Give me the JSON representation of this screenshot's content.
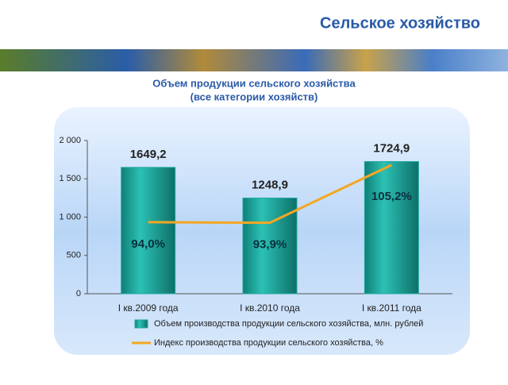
{
  "header": {
    "title": "Сельское хозяйство"
  },
  "chart_data": {
    "type": "bar",
    "title": "Объем продукции сельского хозяйства",
    "subtitle": "(все категории хозяйств)",
    "categories": [
      "I кв.2009 года",
      "I кв.2010 года",
      "I кв.2011 года"
    ],
    "series": [
      {
        "name": "Объем производства продукции сельского хозяйства, млн. рублей",
        "type": "bar",
        "color": "#1fa89e",
        "values": [
          1649.2,
          1248.9,
          1724.9
        ],
        "value_labels": [
          "1649,2",
          "1248,9",
          "1724,9"
        ]
      },
      {
        "name": "Индекс производства продукции сельского хозяйства, %",
        "type": "line",
        "axis": "y2",
        "color": "#f5a623",
        "values": [
          94.0,
          93.9,
          105.2
        ],
        "value_labels": [
          "94,0%",
          "93,9%",
          "105,2%"
        ]
      }
    ],
    "ylim": [
      0,
      2000
    ],
    "yticks": [
      0,
      500,
      {
        "value": 1000,
        "label": "1 000"
      },
      {
        "value": 1500,
        "label": "1 500"
      },
      {
        "value": 2000,
        "label": "2 000"
      }
    ],
    "y2lim": [
      80,
      110
    ]
  }
}
